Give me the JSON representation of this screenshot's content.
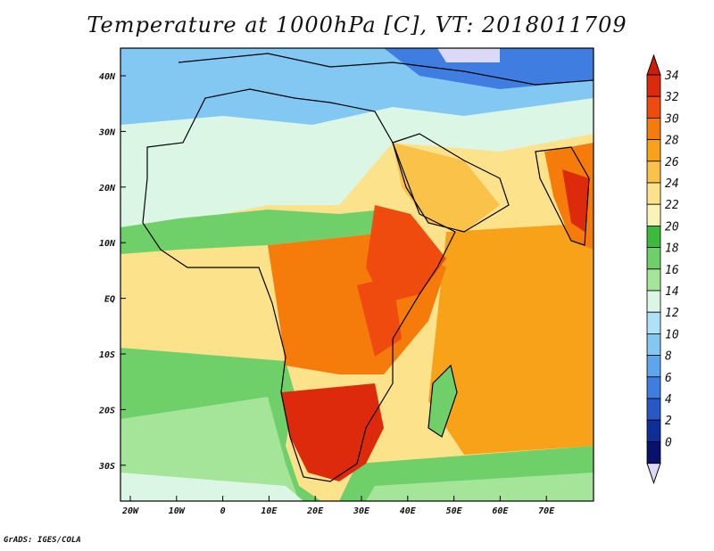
{
  "title": "Temperature at 1000hPa [C], VT: 2018011709",
  "footer": "GrADS: IGES/COLA",
  "map": {
    "lon_ticks": [
      "20W",
      "10W",
      "0",
      "10E",
      "20E",
      "30E",
      "40E",
      "50E",
      "60E",
      "70E"
    ],
    "lat_ticks": [
      "40N",
      "30N",
      "20N",
      "10N",
      "EQ",
      "10S",
      "20S",
      "30S"
    ],
    "lon_range": [
      -22,
      80
    ],
    "lat_range": [
      -36,
      45
    ]
  },
  "colorbar": {
    "levels": [
      "34",
      "32",
      "30",
      "28",
      "26",
      "24",
      "22",
      "20",
      "18",
      "16",
      "14",
      "12",
      "10",
      "8",
      "6",
      "4",
      "2",
      "0"
    ],
    "colors": [
      "#dd2a0c",
      "#f04b0f",
      "#f57c0b",
      "#f8a219",
      "#fac248",
      "#fde28c",
      "#f9f3b6",
      "#3cba3c",
      "#6fd06a",
      "#a4e59a",
      "#dcf6e5",
      "#aee2f6",
      "#82c8f2",
      "#5ea6ec",
      "#3f7ee0",
      "#2658c6",
      "#0e2e9a",
      "#08126e"
    ],
    "over_color": "#d01e0a",
    "under_color": "#dcd8f8"
  }
}
